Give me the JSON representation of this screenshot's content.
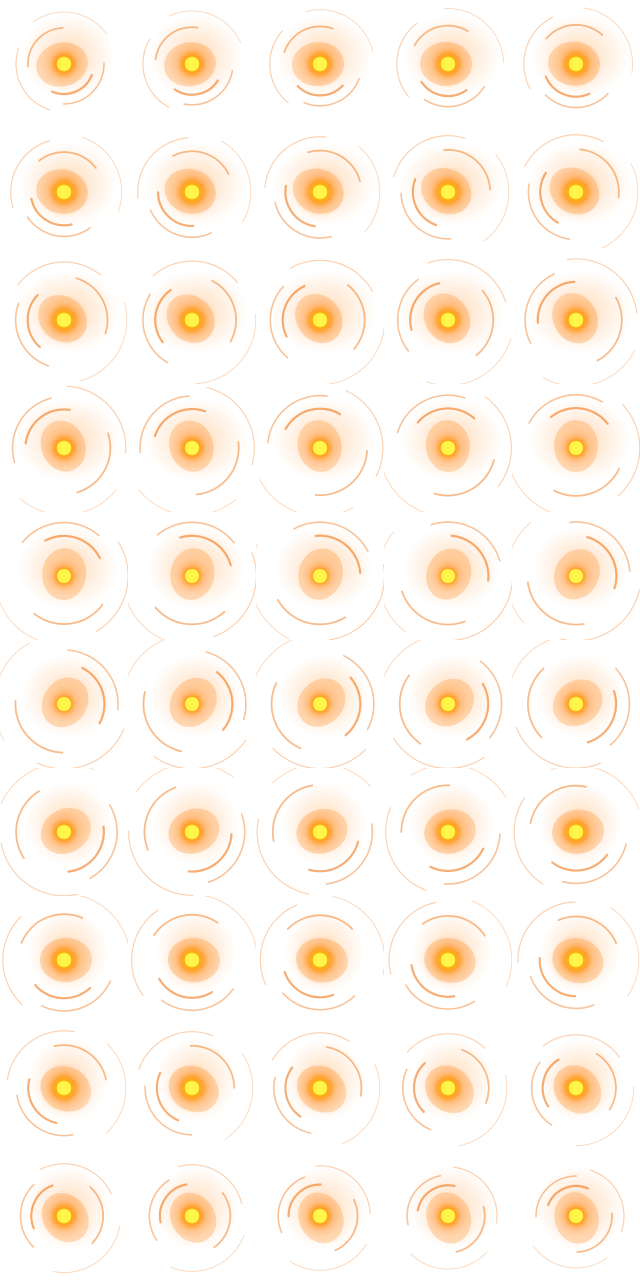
{
  "spritesheet": {
    "subject": "fireball-explosion-animation",
    "columns": 5,
    "rows": 10,
    "frame_count": 50,
    "background": "#ffffff",
    "colors": {
      "core": "#fff64a",
      "inner": "#ffc400",
      "mid": "#ff9a1a",
      "outer": "#ff7a00",
      "glow": "#ffb066",
      "streak": "#f06a00"
    }
  }
}
